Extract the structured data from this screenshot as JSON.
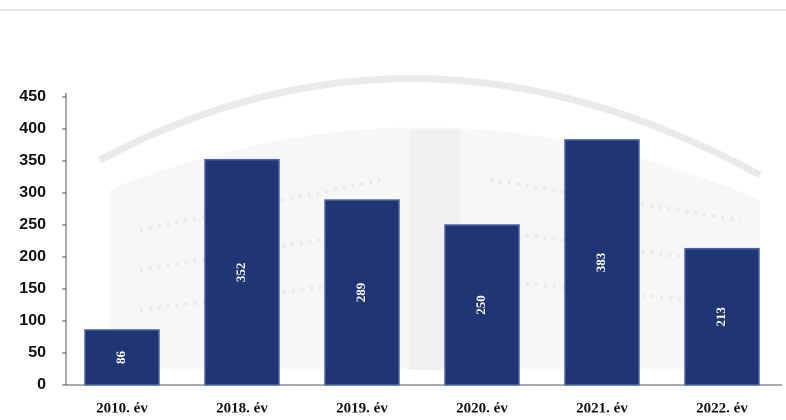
{
  "chart_data": {
    "type": "bar",
    "categories": [
      "2010. év",
      "2018. év",
      "2019. év",
      "2020. év",
      "2021. év",
      "2022. év"
    ],
    "values": [
      86,
      352,
      289,
      250,
      383,
      213
    ],
    "color": "#1f3574",
    "ylim": [
      0,
      450
    ],
    "yticks": [
      0,
      50,
      100,
      150,
      200,
      250,
      300,
      350,
      400,
      450
    ]
  }
}
